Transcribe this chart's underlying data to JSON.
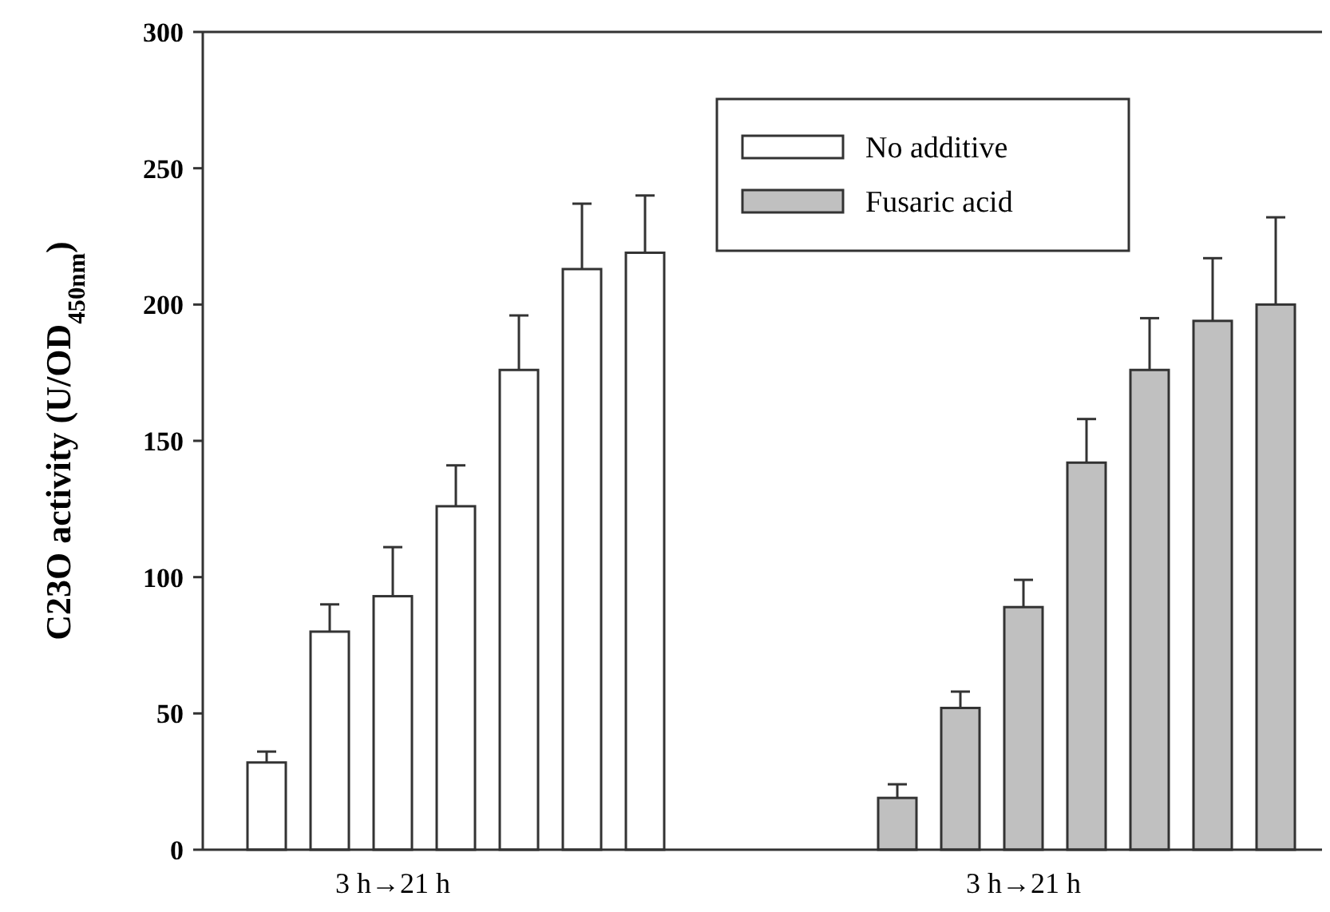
{
  "chart_data": {
    "type": "bar",
    "ylabel": "C23O activity (U/OD$_{450nm}$)",
    "categories": [
      null,
      null,
      "3 h→21 h",
      null,
      null,
      null,
      null,
      null,
      null,
      null,
      null,
      null,
      "3 h→21 h",
      null,
      null,
      null,
      null
    ],
    "series": [
      {
        "name": "No additive",
        "color": "#ffffff",
        "values": [
          32,
          80,
          93,
          126,
          176,
          213,
          219,
          null,
          null,
          null,
          null,
          null,
          null,
          null,
          null,
          null,
          null
        ],
        "errors": [
          [
            32,
            36
          ],
          [
            80,
            90
          ],
          [
            93,
            111
          ],
          [
            126,
            141
          ],
          [
            176,
            196
          ],
          [
            213,
            237
          ],
          [
            219,
            240
          ],
          null,
          null,
          null,
          null,
          null,
          null,
          null,
          null,
          null,
          null
        ]
      },
      {
        "name": "Fusaric acid",
        "color": "#c0c0c0",
        "values": [
          null,
          null,
          null,
          null,
          null,
          null,
          null,
          null,
          null,
          null,
          19,
          52,
          89,
          142,
          176,
          194,
          200
        ],
        "errors": [
          null,
          null,
          null,
          null,
          null,
          null,
          null,
          null,
          null,
          null,
          [
            19,
            24
          ],
          [
            52,
            58
          ],
          [
            89,
            99
          ],
          [
            142,
            158
          ],
          [
            176,
            195
          ],
          [
            194,
            217
          ],
          [
            200,
            232
          ]
        ]
      }
    ],
    "ylim": [
      0,
      300
    ],
    "yticks": [
      0,
      50,
      100,
      150,
      200,
      250,
      300
    ],
    "grid": false,
    "legend": "top right"
  }
}
